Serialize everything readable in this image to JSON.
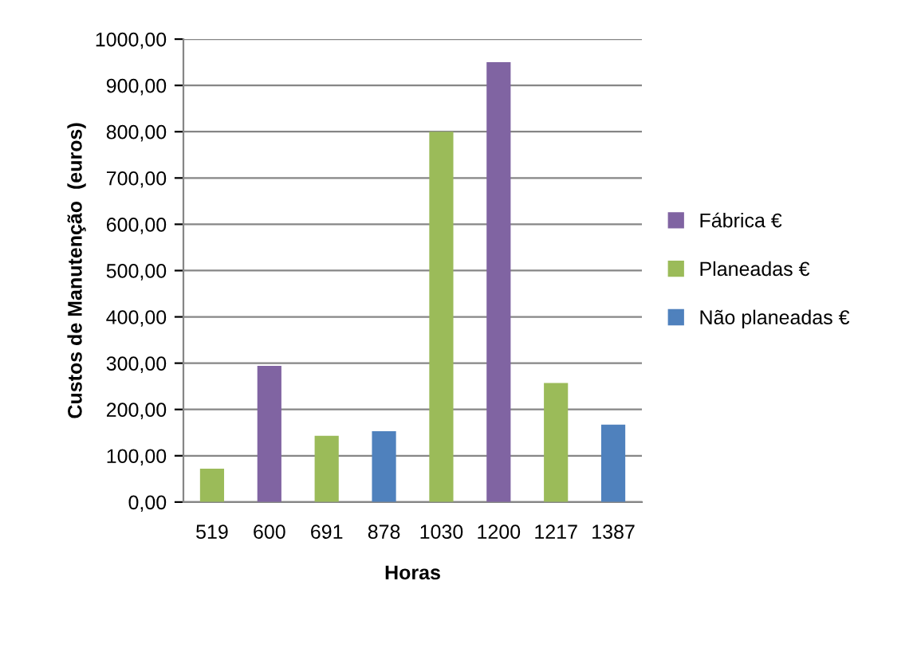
{
  "chart_data": {
    "type": "bar",
    "xlabel": "Horas",
    "ylabel": "Custos de Manutenção  (euros)",
    "categories": [
      "519",
      "600",
      "691",
      "878",
      "1030",
      "1200",
      "1217",
      "1387"
    ],
    "series": [
      {
        "name": "Fábrica €",
        "color": "#8064a2",
        "values": [
          null,
          294,
          null,
          null,
          null,
          950,
          null,
          null
        ]
      },
      {
        "name": "Planeadas €",
        "color": "#9bbb59",
        "values": [
          72,
          null,
          143,
          null,
          800,
          null,
          257,
          null
        ]
      },
      {
        "name": "Não planeadas €",
        "color": "#4f81bd",
        "values": [
          null,
          null,
          null,
          153,
          null,
          null,
          null,
          167
        ]
      }
    ],
    "ylim": [
      0,
      1000
    ],
    "yticks": [
      {
        "value": 0,
        "label": "0,00"
      },
      {
        "value": 100,
        "label": "100,00"
      },
      {
        "value": 200,
        "label": "200,00"
      },
      {
        "value": 300,
        "label": "300,00"
      },
      {
        "value": 400,
        "label": "400,00"
      },
      {
        "value": 500,
        "label": "500,00"
      },
      {
        "value": 600,
        "label": "600,00"
      },
      {
        "value": 700,
        "label": "700,00"
      },
      {
        "value": 800,
        "label": "800,00"
      },
      {
        "value": 900,
        "label": "900,00"
      },
      {
        "value": 1000,
        "label": "1000,00"
      }
    ],
    "grid": "y",
    "legend": "right"
  }
}
